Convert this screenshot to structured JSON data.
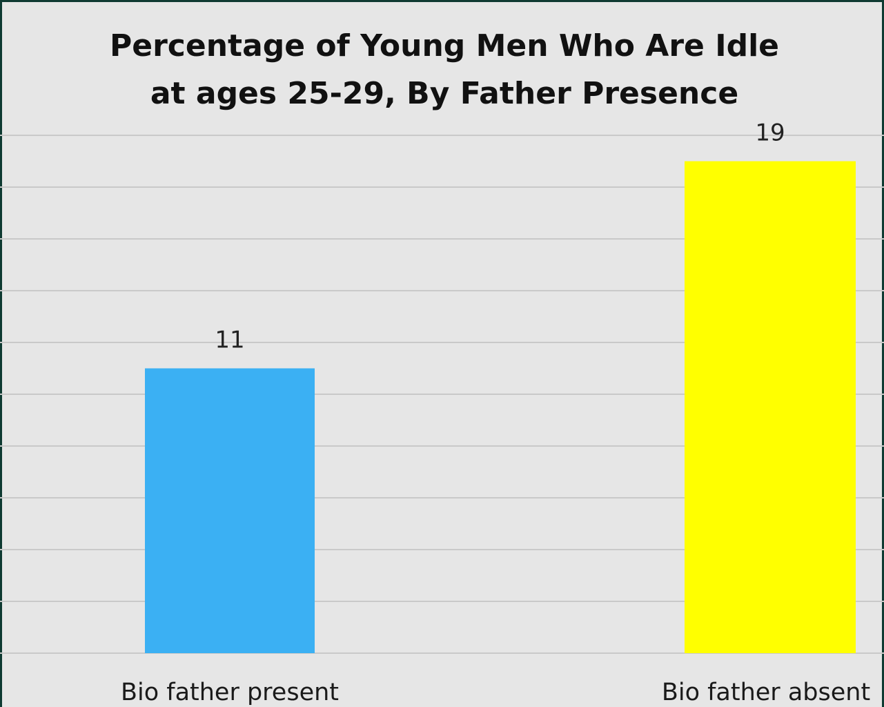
{
  "chart_data": {
    "type": "bar",
    "title_lines": [
      "Percentage of Young Men Who Are Idle",
      "at ages 25-29, By Father Presence"
    ],
    "categories": [
      "Bio father present",
      "Bio father absent"
    ],
    "values": [
      11,
      19
    ],
    "data_labels": [
      "11",
      "19"
    ],
    "bar_colors": [
      "#3bb0f3",
      "#ffff00"
    ],
    "xlabel": "",
    "ylabel": "",
    "ylim": [
      0,
      20
    ],
    "grid": true,
    "legend": "none"
  },
  "colors": {
    "plot_background": "#e6e6e6",
    "frame": "#0f3a32",
    "gridline": "#c9c9c9"
  }
}
